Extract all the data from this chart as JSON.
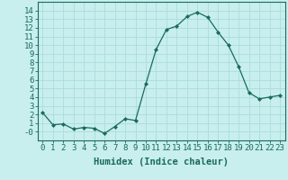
{
  "x": [
    0,
    1,
    2,
    3,
    4,
    5,
    6,
    7,
    8,
    9,
    10,
    11,
    12,
    13,
    14,
    15,
    16,
    17,
    18,
    19,
    20,
    21,
    22,
    23
  ],
  "y": [
    2.2,
    0.8,
    0.9,
    0.3,
    0.5,
    0.4,
    -0.2,
    0.6,
    1.5,
    1.3,
    5.5,
    9.5,
    11.8,
    12.2,
    13.3,
    13.8,
    13.2,
    11.5,
    10.0,
    7.5,
    4.5,
    3.8,
    4.0,
    4.2
  ],
  "line_color": "#1a6b5a",
  "marker": "D",
  "marker_size": 2.0,
  "bg_color": "#c8eeee",
  "grid_color": "#aadddd",
  "xlabel": "Humidex (Indice chaleur)",
  "xlim": [
    -0.5,
    23.5
  ],
  "ylim": [
    -1,
    15
  ],
  "yticks": [
    0,
    1,
    2,
    3,
    4,
    5,
    6,
    7,
    8,
    9,
    10,
    11,
    12,
    13,
    14
  ],
  "ytick_labels": [
    "-0",
    "1",
    "2",
    "3",
    "4",
    "5",
    "6",
    "7",
    "8",
    "9",
    "10",
    "11",
    "12",
    "13",
    "14"
  ],
  "xticks": [
    0,
    1,
    2,
    3,
    4,
    5,
    6,
    7,
    8,
    9,
    10,
    11,
    12,
    13,
    14,
    15,
    16,
    17,
    18,
    19,
    20,
    21,
    22,
    23
  ],
  "title_color": "#1a6b5a",
  "axis_color": "#1a6b5a",
  "font_size": 6.5,
  "xlabel_fontsize": 7.5
}
